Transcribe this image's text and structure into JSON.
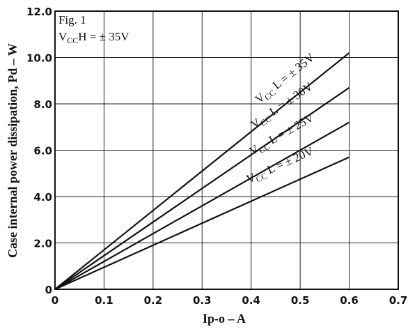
{
  "chart_data": {
    "type": "line",
    "xlabel": "Ip-o – A",
    "ylabel": "Case internal power dissipation, Pd – W",
    "xlim": [
      0,
      0.7
    ],
    "ylim": [
      0,
      12.0
    ],
    "x_ticks": [
      "0",
      "0.1",
      "0.2",
      "0.3",
      "0.4",
      "0.5",
      "0.6",
      "0.7"
    ],
    "y_ticks": [
      "0",
      "2.0",
      "4.0",
      "6.0",
      "8.0",
      "10.0",
      "12.0"
    ],
    "grid": true,
    "annotation": {
      "fig_label": "Fig. 1",
      "vcch_main": "V",
      "vcch_sub": "CC",
      "vcch_rest": "H = ± 35V"
    },
    "series": [
      {
        "label_main": "V",
        "label_sub": "CC",
        "label_rest": " L = ± 35V",
        "x": [
          0,
          0.6
        ],
        "y": [
          0,
          10.2
        ]
      },
      {
        "label_main": "V",
        "label_sub": "CC",
        "label_rest": " L = ± 30V",
        "x": [
          0,
          0.6
        ],
        "y": [
          0,
          8.7
        ]
      },
      {
        "label_main": "V",
        "label_sub": "CC",
        "label_rest": " L = ± 25V",
        "x": [
          0,
          0.6
        ],
        "y": [
          0,
          7.2
        ]
      },
      {
        "label_main": "V",
        "label_sub": "CC",
        "label_rest": " L = ± 20V",
        "x": [
          0,
          0.6
        ],
        "y": [
          0,
          5.7
        ]
      }
    ]
  }
}
